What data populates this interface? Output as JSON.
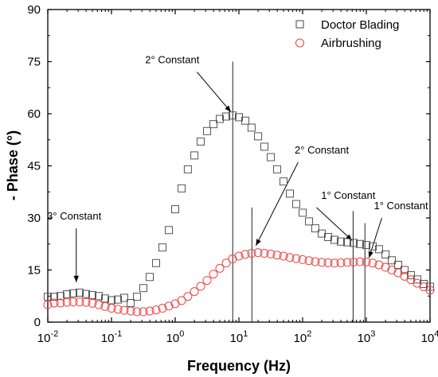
{
  "chart_data": {
    "type": "scatter",
    "xscale": "log",
    "xlim": [
      0.01,
      10000
    ],
    "ylim": [
      0,
      90
    ],
    "xlabel": "Frequency (Hz)",
    "ylabel": "- Phase (°)",
    "grid": false,
    "legend_position": "top-right",
    "y_ticks": [
      "0",
      "15",
      "30",
      "45",
      "60",
      "75",
      "90"
    ],
    "x_ticks": [
      {
        "base": "10",
        "exp": "-2",
        "value": 0.01
      },
      {
        "base": "10",
        "exp": "-1",
        "value": 0.1
      },
      {
        "base": "10",
        "exp": "0",
        "value": 1
      },
      {
        "base": "10",
        "exp": "1",
        "value": 10
      },
      {
        "base": "10",
        "exp": "2",
        "value": 100
      },
      {
        "base": "10",
        "exp": "3",
        "value": 1000
      },
      {
        "base": "10",
        "exp": "4",
        "value": 10000
      }
    ],
    "series": [
      {
        "name": "Doctor Blading",
        "marker": "square",
        "color": "#555555",
        "points": [
          [
            0.01,
            7.3
          ],
          [
            0.0126,
            7.3
          ],
          [
            0.0158,
            7.5
          ],
          [
            0.02,
            8.0
          ],
          [
            0.0251,
            8.3
          ],
          [
            0.0316,
            8.5
          ],
          [
            0.0398,
            8.1
          ],
          [
            0.0501,
            7.8
          ],
          [
            0.0631,
            7.5
          ],
          [
            0.0794,
            6.8
          ],
          [
            0.1,
            6.3
          ],
          [
            0.126,
            6.5
          ],
          [
            0.158,
            7.0
          ],
          [
            0.2,
            5.5
          ],
          [
            0.251,
            7.3
          ],
          [
            0.316,
            9.8
          ],
          [
            0.398,
            13.0
          ],
          [
            0.501,
            17.0
          ],
          [
            0.631,
            21.5
          ],
          [
            0.794,
            26.5
          ],
          [
            1.0,
            32.5
          ],
          [
            1.26,
            38.5
          ],
          [
            1.58,
            44.0
          ],
          [
            2.0,
            48.0
          ],
          [
            2.51,
            52.0
          ],
          [
            3.16,
            55.0
          ],
          [
            3.98,
            57.0
          ],
          [
            5.01,
            58.5
          ],
          [
            6.31,
            59.2
          ],
          [
            7.94,
            59.5
          ],
          [
            10.0,
            59.0
          ],
          [
            12.6,
            58.0
          ],
          [
            15.8,
            56.0
          ],
          [
            20.0,
            53.5
          ],
          [
            25.1,
            50.5
          ],
          [
            31.6,
            47.5
          ],
          [
            39.8,
            44.0
          ],
          [
            50.1,
            40.5
          ],
          [
            63.1,
            37.0
          ],
          [
            79.4,
            34.0
          ],
          [
            100,
            31.5
          ],
          [
            126,
            29.0
          ],
          [
            158,
            27.0
          ],
          [
            200,
            25.5
          ],
          [
            251,
            24.5
          ],
          [
            316,
            23.7
          ],
          [
            398,
            23.2
          ],
          [
            501,
            23.0
          ],
          [
            631,
            22.8
          ],
          [
            794,
            22.5
          ],
          [
            1000,
            22.2
          ],
          [
            1260,
            21.8
          ],
          [
            1580,
            21.0
          ],
          [
            2000,
            19.5
          ],
          [
            2510,
            17.8
          ],
          [
            3160,
            16.5
          ],
          [
            3980,
            15.0
          ],
          [
            5010,
            13.5
          ],
          [
            6310,
            12.3
          ],
          [
            7940,
            11.0
          ],
          [
            10000,
            10.2
          ]
        ]
      },
      {
        "name": "Airbrushing",
        "marker": "circle",
        "color": "#ee4444",
        "points": [
          [
            0.01,
            5.0
          ],
          [
            0.0126,
            5.5
          ],
          [
            0.0158,
            5.5
          ],
          [
            0.02,
            5.7
          ],
          [
            0.0251,
            5.8
          ],
          [
            0.0316,
            5.8
          ],
          [
            0.0398,
            5.7
          ],
          [
            0.0501,
            5.4
          ],
          [
            0.0631,
            5.0
          ],
          [
            0.0794,
            4.5
          ],
          [
            0.1,
            4.0
          ],
          [
            0.126,
            3.7
          ],
          [
            0.158,
            3.4
          ],
          [
            0.2,
            3.2
          ],
          [
            0.251,
            3.0
          ],
          [
            0.316,
            3.0
          ],
          [
            0.398,
            3.2
          ],
          [
            0.501,
            3.5
          ],
          [
            0.631,
            4.0
          ],
          [
            0.794,
            4.6
          ],
          [
            1.0,
            5.3
          ],
          [
            1.26,
            6.2
          ],
          [
            1.58,
            7.4
          ],
          [
            2.0,
            8.8
          ],
          [
            2.51,
            10.3
          ],
          [
            3.16,
            12.0
          ],
          [
            3.98,
            13.8
          ],
          [
            5.01,
            15.5
          ],
          [
            6.31,
            17.0
          ],
          [
            7.94,
            18.2
          ],
          [
            10.0,
            19.0
          ],
          [
            12.6,
            19.5
          ],
          [
            15.8,
            19.8
          ],
          [
            20.0,
            20.0
          ],
          [
            25.1,
            19.8
          ],
          [
            31.6,
            19.6
          ],
          [
            39.8,
            19.3
          ],
          [
            50.1,
            19.0
          ],
          [
            63.1,
            18.6
          ],
          [
            79.4,
            18.3
          ],
          [
            100,
            18.0
          ],
          [
            126,
            17.7
          ],
          [
            158,
            17.4
          ],
          [
            200,
            17.2
          ],
          [
            251,
            17.1
          ],
          [
            316,
            17.0
          ],
          [
            398,
            17.1
          ],
          [
            501,
            17.2
          ],
          [
            631,
            17.3
          ],
          [
            794,
            17.4
          ],
          [
            1000,
            17.3
          ],
          [
            1260,
            17.0
          ],
          [
            1580,
            16.5
          ],
          [
            2000,
            15.8
          ],
          [
            2510,
            15.0
          ],
          [
            3160,
            14.2
          ],
          [
            3980,
            13.2
          ],
          [
            5010,
            12.2
          ],
          [
            6310,
            11.2
          ],
          [
            7940,
            10.2
          ],
          [
            10000,
            9.2
          ]
        ]
      }
    ],
    "marker_lines": [
      {
        "name": "db-peak-line",
        "x": 8.0,
        "y_top": 75
      },
      {
        "name": "ab-peak-line",
        "x": 16.0,
        "y_top": 33
      },
      {
        "name": "db-first-line",
        "x": 620,
        "y_top": 32
      },
      {
        "name": "ab-first-line",
        "x": 950,
        "y_top": 28.5
      }
    ],
    "annotations": [
      {
        "name": "annotation-db-2-constant",
        "text": "2° Constant",
        "tx": 0.9,
        "ty": 74.5,
        "from": [
          2.2,
          72
        ],
        "to": [
          7.5,
          60.5
        ]
      },
      {
        "name": "annotation-ab-2-constant",
        "text": "2° Constant",
        "tx": 200,
        "ty": 48.5,
        "from": [
          85,
          46
        ],
        "to": [
          18.5,
          22
        ]
      },
      {
        "name": "annotation-db-1-constant",
        "text": "1° Constant",
        "tx": 520,
        "ty": 35.5,
        "from": [
          165,
          33
        ],
        "to": [
          600,
          23.5
        ]
      },
      {
        "name": "annotation-ab-1-constant",
        "text": "1° Constant",
        "tx": 3500,
        "ty": 32.5,
        "from": [
          1750,
          30
        ],
        "to": [
          1100,
          18.5
        ]
      },
      {
        "name": "annotation-3-constant",
        "text": "3° Constant",
        "tx": 0.026,
        "ty": 29.5,
        "from": [
          0.028,
          27
        ],
        "to": [
          0.028,
          11.5
        ]
      }
    ]
  }
}
